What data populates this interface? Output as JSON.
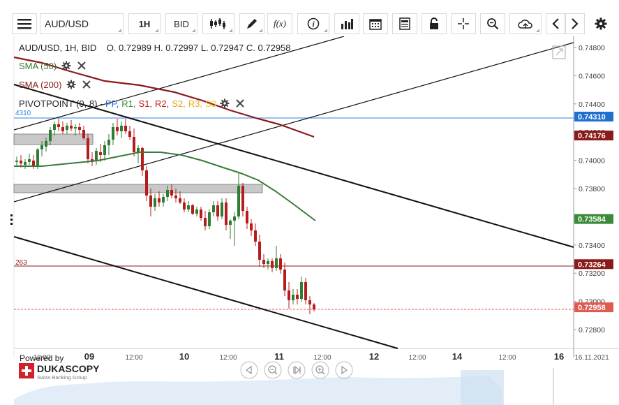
{
  "toolbar": {
    "symbol": "AUD/USD",
    "period": "1H",
    "side": "BID",
    "fx_label": "f(x)",
    "icons": [
      "menu-icon",
      "candlestick-icon",
      "pencil-icon",
      "function-icon",
      "info-icon",
      "bar-chart-icon",
      "calendar-icon",
      "document-icon",
      "lock-icon",
      "crosshair-icon",
      "zoom-icon",
      "cloud-upload-icon",
      "chevron-left-icon",
      "chevron-right-icon",
      "gear-icon"
    ]
  },
  "header": {
    "instrument_line": "AUD/USD, 1H, BID    O. 0.72989 H. 0.72997 L. 0.72947 C. 0.72958"
  },
  "indicators": {
    "sma50": "SMA (50)",
    "sma200": "SMA (200)",
    "pivot_name": "PIVOTPOINT (0, 8)",
    "pivot_sep": " - ",
    "pivot_levels": [
      "PP,",
      "R1,",
      "S1,",
      "R2,",
      "S2,",
      "R3,",
      "S3"
    ]
  },
  "price_axis": {
    "ticks": [
      "0.74800",
      "0.74600",
      "0.74400",
      "0.74200",
      "0.74000",
      "0.73800",
      "0.73600",
      "0.73400",
      "0.73200",
      "0.73000",
      "0.72800"
    ],
    "tags": [
      {
        "value": "0.74310",
        "color": "#1f6fd1"
      },
      {
        "value": "0.74176",
        "color": "#8b1a1a"
      },
      {
        "value": "0.73584",
        "color": "#3a8a3a"
      },
      {
        "value": "0.73264",
        "color": "#8b1a1a"
      },
      {
        "value": "0.72958",
        "color": "#e05a50"
      }
    ],
    "left_labels": [
      "4310",
      "263"
    ]
  },
  "time_axis": {
    "labels": [
      {
        "text": "12:00",
        "bold": false
      },
      {
        "text": "09",
        "bold": true
      },
      {
        "text": "12:00",
        "bold": false
      },
      {
        "text": "10",
        "bold": true
      },
      {
        "text": "12:00",
        "bold": false
      },
      {
        "text": "11",
        "bold": true
      },
      {
        "text": "12:00",
        "bold": false
      },
      {
        "text": "12",
        "bold": true
      },
      {
        "text": "12:00",
        "bold": false
      },
      {
        "text": "14",
        "bold": true
      },
      {
        "text": "12:00",
        "bold": false
      },
      {
        "text": "16",
        "bold": true
      },
      {
        "text": "16.11.2021",
        "bold": false
      }
    ]
  },
  "branding": {
    "powered_by": "Powered by",
    "brand": "DUKASCOPY",
    "tagline": "Swiss Banking Group"
  },
  "colors": {
    "sma50": "#3a7a3a",
    "sma200": "#8b1a1a",
    "pp": "#1f6fd1",
    "r1": "#3a8a3a",
    "s1": "#c0201a",
    "r2": "#c0201a",
    "s2": "#e8a21a",
    "r3": "#e8b01a",
    "s3": "#f0d020",
    "bull": "#2e7d32",
    "bear": "#b71c1c"
  }
}
